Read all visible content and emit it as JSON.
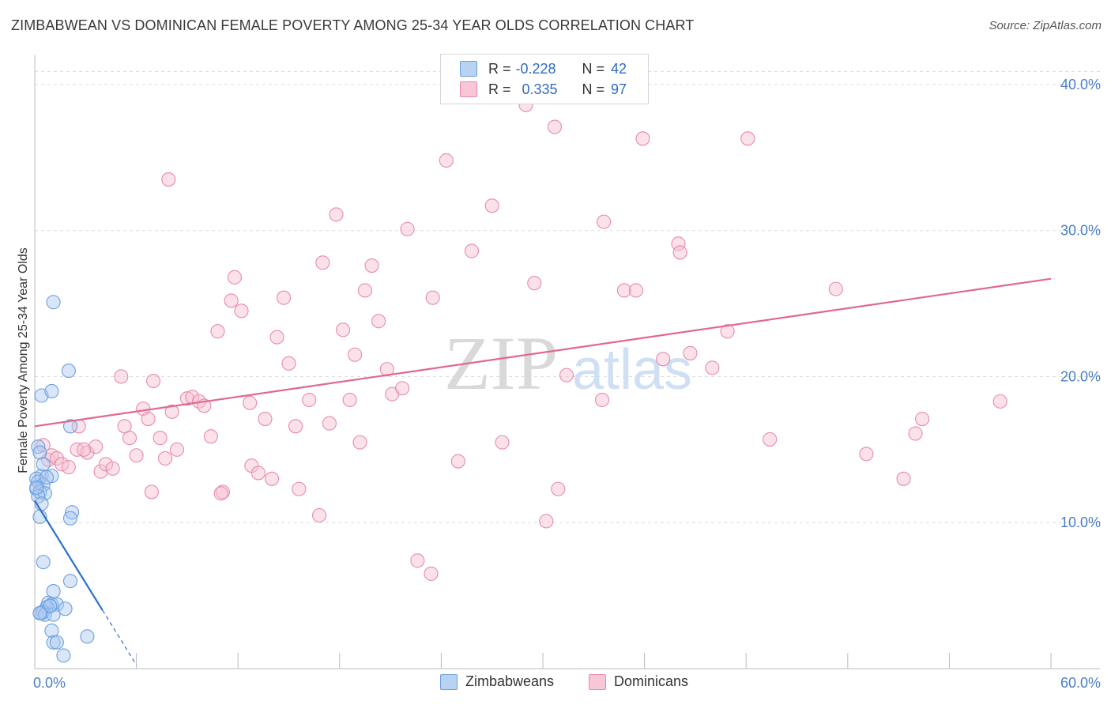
{
  "header": {
    "title": "ZIMBABWEAN VS DOMINICAN FEMALE POVERTY AMONG 25-34 YEAR OLDS CORRELATION CHART",
    "source": "Source: ZipAtlas.com"
  },
  "legend": {
    "row1": {
      "r_label": "R =",
      "r_value": "-0.228",
      "n_label": "N =",
      "n_value": "42"
    },
    "row2": {
      "r_label": "R =",
      "r_value": "0.335",
      "n_label": "N =",
      "n_value": "97"
    }
  },
  "bottom_legend": {
    "series1": "Zimbabweans",
    "series2": "Dominicans"
  },
  "watermark": {
    "part1": "ZIP",
    "part2": "atlas"
  },
  "colors": {
    "zimbabwe": "#6a9fe0",
    "zimbabwe_fill": "#aac8f0",
    "zimbabwe_line": "#2b6fd0",
    "dominican": "#e88aa8",
    "dominican_fill": "#f6bfd0",
    "dominican_line": "#e06890"
  },
  "chart_data": {
    "type": "scatter",
    "title": "ZIMBABWEAN VS DOMINICAN FEMALE POVERTY AMONG 25-34 YEAR OLDS CORRELATION CHART",
    "xlabel": "",
    "ylabel": "Female Poverty Among 25-34 Year Olds",
    "xlim": [
      0,
      60
    ],
    "ylim": [
      0,
      42
    ],
    "x_tick_labels": [
      "0.0%",
      "60.0%"
    ],
    "y_ticks": [
      10,
      20,
      30,
      40
    ],
    "y_tick_labels": [
      "10.0%",
      "20.0%",
      "30.0%",
      "40.0%"
    ],
    "grid": true,
    "legend_position": "top-center",
    "series": [
      {
        "name": "Zimbabweans",
        "r": -0.228,
        "n": 42,
        "trend": {
          "x0": 0.0,
          "y0": 11.5,
          "x1": 4.0,
          "y1": 4.0,
          "dash_x1": 6.0
        },
        "points": [
          [
            0.2,
            15.2
          ],
          [
            0.3,
            14.8
          ],
          [
            0.4,
            13.2
          ],
          [
            0.1,
            13.0
          ],
          [
            0.2,
            12.8
          ],
          [
            0.5,
            12.6
          ],
          [
            0.1,
            12.3
          ],
          [
            0.3,
            12.1
          ],
          [
            0.6,
            12.0
          ],
          [
            0.2,
            11.8
          ],
          [
            0.4,
            11.3
          ],
          [
            0.3,
            10.4
          ],
          [
            0.5,
            14.0
          ],
          [
            1.0,
            13.2
          ],
          [
            0.7,
            13.1
          ],
          [
            0.4,
            18.7
          ],
          [
            1.0,
            19.0
          ],
          [
            1.1,
            25.1
          ],
          [
            2.0,
            20.4
          ],
          [
            2.1,
            16.6
          ],
          [
            2.2,
            10.7
          ],
          [
            2.1,
            10.3
          ],
          [
            0.5,
            7.3
          ],
          [
            2.1,
            6.0
          ],
          [
            1.1,
            5.3
          ],
          [
            0.8,
            4.5
          ],
          [
            1.0,
            4.4
          ],
          [
            1.3,
            4.4
          ],
          [
            0.7,
            4.2
          ],
          [
            0.5,
            3.9
          ],
          [
            0.4,
            3.8
          ],
          [
            0.6,
            3.7
          ],
          [
            1.1,
            3.7
          ],
          [
            1.8,
            4.1
          ],
          [
            1.0,
            2.6
          ],
          [
            1.1,
            1.8
          ],
          [
            1.3,
            1.8
          ],
          [
            1.7,
            0.9
          ],
          [
            3.1,
            2.2
          ],
          [
            0.9,
            4.3
          ],
          [
            0.3,
            3.8
          ],
          [
            0.1,
            12.4
          ]
        ]
      },
      {
        "name": "Dominicans",
        "r": 0.335,
        "n": 97,
        "trend": {
          "x0": 0.0,
          "y0": 16.6,
          "x1": 60.0,
          "y1": 26.7
        },
        "points": [
          [
            0.5,
            15.3
          ],
          [
            0.8,
            14.3
          ],
          [
            1.0,
            14.6
          ],
          [
            1.3,
            14.4
          ],
          [
            1.6,
            14.0
          ],
          [
            2.0,
            13.8
          ],
          [
            2.6,
            16.6
          ],
          [
            2.5,
            15.0
          ],
          [
            3.1,
            14.8
          ],
          [
            3.6,
            15.2
          ],
          [
            3.9,
            13.5
          ],
          [
            4.2,
            14.0
          ],
          [
            4.6,
            13.7
          ],
          [
            5.1,
            20.0
          ],
          [
            5.3,
            16.6
          ],
          [
            5.6,
            15.8
          ],
          [
            6.0,
            14.6
          ],
          [
            6.4,
            17.8
          ],
          [
            6.7,
            17.1
          ],
          [
            7.0,
            19.7
          ],
          [
            7.4,
            15.8
          ],
          [
            7.7,
            14.4
          ],
          [
            8.1,
            17.6
          ],
          [
            8.4,
            15.0
          ],
          [
            7.9,
            33.5
          ],
          [
            9.0,
            18.5
          ],
          [
            9.3,
            18.6
          ],
          [
            9.7,
            18.3
          ],
          [
            10.0,
            18.0
          ],
          [
            10.4,
            15.9
          ],
          [
            10.8,
            23.1
          ],
          [
            11.1,
            12.1
          ],
          [
            11.6,
            25.2
          ],
          [
            11.8,
            26.8
          ],
          [
            12.2,
            24.5
          ],
          [
            12.8,
            13.9
          ],
          [
            12.7,
            18.2
          ],
          [
            13.2,
            13.4
          ],
          [
            13.6,
            17.1
          ],
          [
            14.0,
            13.0
          ],
          [
            14.3,
            22.7
          ],
          [
            14.7,
            25.4
          ],
          [
            15.0,
            20.9
          ],
          [
            15.4,
            16.6
          ],
          [
            15.6,
            12.3
          ],
          [
            16.2,
            18.4
          ],
          [
            16.8,
            10.5
          ],
          [
            17.0,
            27.8
          ],
          [
            17.4,
            16.8
          ],
          [
            17.8,
            31.1
          ],
          [
            18.2,
            23.2
          ],
          [
            18.6,
            18.4
          ],
          [
            18.9,
            21.5
          ],
          [
            19.2,
            15.5
          ],
          [
            19.5,
            25.9
          ],
          [
            19.9,
            27.6
          ],
          [
            20.3,
            23.8
          ],
          [
            20.8,
            20.5
          ],
          [
            21.1,
            18.8
          ],
          [
            21.7,
            19.2
          ],
          [
            22.0,
            30.1
          ],
          [
            22.6,
            7.4
          ],
          [
            23.4,
            6.5
          ],
          [
            23.5,
            25.4
          ],
          [
            24.3,
            34.8
          ],
          [
            25.0,
            14.2
          ],
          [
            25.8,
            28.6
          ],
          [
            27.0,
            31.7
          ],
          [
            27.6,
            15.5
          ],
          [
            29.0,
            38.6
          ],
          [
            29.5,
            26.4
          ],
          [
            30.2,
            10.1
          ],
          [
            30.7,
            37.1
          ],
          [
            30.9,
            12.3
          ],
          [
            31.4,
            20.1
          ],
          [
            33.5,
            18.4
          ],
          [
            33.6,
            30.6
          ],
          [
            34.8,
            25.9
          ],
          [
            35.5,
            25.9
          ],
          [
            35.9,
            36.3
          ],
          [
            37.1,
            21.2
          ],
          [
            38.0,
            29.1
          ],
          [
            38.1,
            28.5
          ],
          [
            38.7,
            21.6
          ],
          [
            40.0,
            20.6
          ],
          [
            40.9,
            23.1
          ],
          [
            42.1,
            36.3
          ],
          [
            43.4,
            15.7
          ],
          [
            47.3,
            26.0
          ],
          [
            49.1,
            14.7
          ],
          [
            51.3,
            13.0
          ],
          [
            52.0,
            16.1
          ],
          [
            52.4,
            17.1
          ],
          [
            57.0,
            18.3
          ],
          [
            6.9,
            12.1
          ],
          [
            11.0,
            12.0
          ],
          [
            2.9,
            15.0
          ]
        ]
      }
    ]
  }
}
